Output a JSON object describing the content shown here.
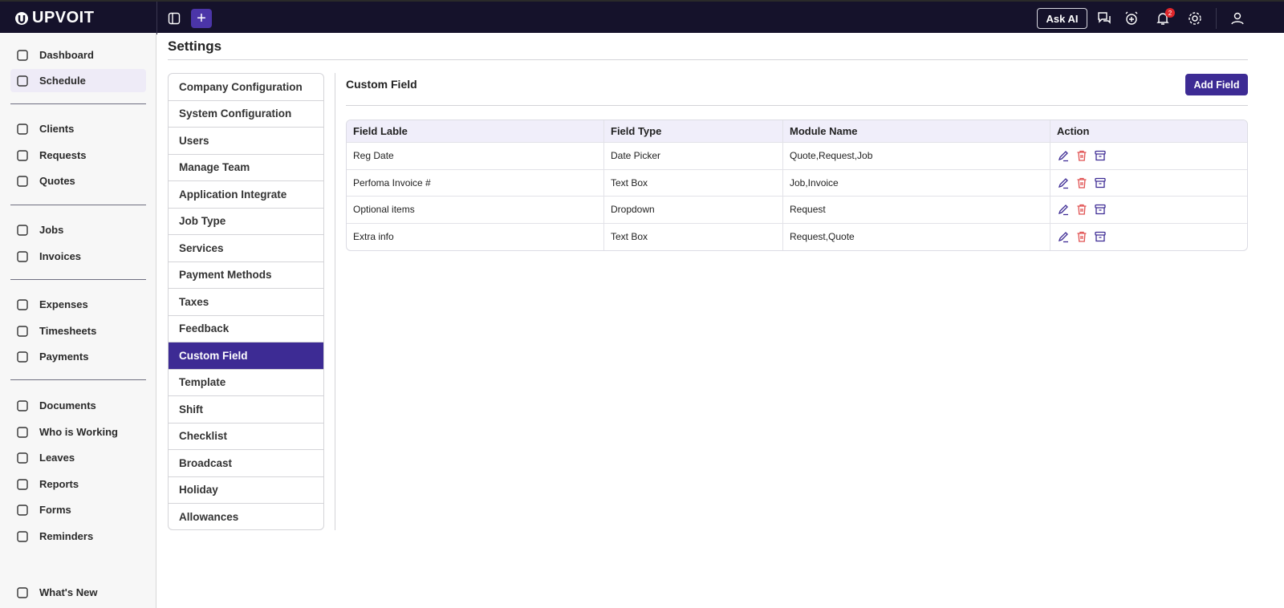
{
  "app": {
    "logo": "UPVOIT"
  },
  "topbar": {
    "ask_ai": "Ask AI",
    "notification_count": "2"
  },
  "sidebar": {
    "groups": [
      [
        {
          "label": "Dashboard",
          "icon": "dashboard-icon"
        },
        {
          "label": "Schedule",
          "icon": "calendar-icon",
          "active": true
        }
      ],
      [
        {
          "label": "Clients",
          "icon": "users-icon"
        },
        {
          "label": "Requests",
          "icon": "request-icon"
        },
        {
          "label": "Quotes",
          "icon": "quote-icon"
        }
      ],
      [
        {
          "label": "Jobs",
          "icon": "tools-icon"
        },
        {
          "label": "Invoices",
          "icon": "invoice-icon"
        }
      ],
      [
        {
          "label": "Expenses",
          "icon": "dollar-icon"
        },
        {
          "label": "Timesheets",
          "icon": "hourglass-icon"
        },
        {
          "label": "Payments",
          "icon": "card-icon"
        }
      ],
      [
        {
          "label": "Documents",
          "icon": "document-icon"
        },
        {
          "label": "Who is Working",
          "icon": "people-icon"
        },
        {
          "label": "Leaves",
          "icon": "leave-icon"
        },
        {
          "label": "Reports",
          "icon": "report-icon"
        },
        {
          "label": "Forms",
          "icon": "form-icon"
        },
        {
          "label": "Reminders",
          "icon": "alarm-icon"
        }
      ],
      [
        {
          "label": "What's New",
          "icon": "star-icon"
        }
      ]
    ]
  },
  "page": {
    "title": "Settings"
  },
  "settings_menu": [
    "Company Configuration",
    "System Configuration",
    "Users",
    "Manage Team",
    "Application Integrate",
    "Job Type",
    "Services",
    "Payment Methods",
    "Taxes",
    "Feedback",
    "Custom Field",
    "Template",
    "Shift",
    "Checklist",
    "Broadcast",
    "Holiday",
    "Allowances"
  ],
  "settings_active": "Custom Field",
  "content": {
    "title": "Custom Field",
    "add_button": "Add Field",
    "columns": [
      "Field Lable",
      "Field Type",
      "Module Name",
      "Action"
    ],
    "rows": [
      [
        "Reg Date",
        "Date Picker",
        "Quote,Request,Job"
      ],
      [
        "Perfoma Invoice #",
        "Text Box",
        "Job,Invoice"
      ],
      [
        "Optional items",
        "Dropdown",
        "Request"
      ],
      [
        "Extra info",
        "Text Box",
        "Request,Quote"
      ]
    ]
  },
  "colors": {
    "topbar": "#15122b",
    "accent": "#3d2b94",
    "delete": "#e05050"
  }
}
